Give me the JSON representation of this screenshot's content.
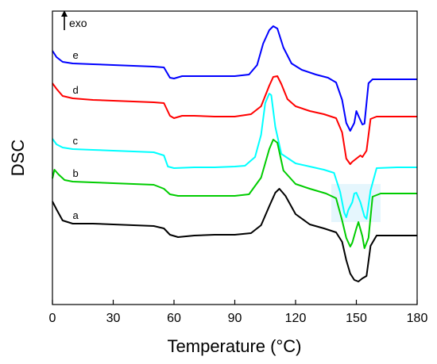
{
  "chart_data": {
    "type": "line",
    "xlabel": "Temperature (°C)",
    "ylabel": "DSC",
    "annotation": "exo",
    "xlim": [
      0,
      180
    ],
    "xticks": [
      0,
      30,
      60,
      90,
      120,
      150,
      180
    ],
    "yticks_shown": false,
    "grid": false,
    "series": [
      {
        "name": "e",
        "color": "#0000ff",
        "points": [
          [
            0,
            64
          ],
          [
            2,
            72
          ],
          [
            5,
            78
          ],
          [
            10,
            80
          ],
          [
            20,
            81
          ],
          [
            30,
            82
          ],
          [
            40,
            83
          ],
          [
            50,
            84
          ],
          [
            55,
            85
          ],
          [
            58,
            98
          ],
          [
            60,
            99
          ],
          [
            64,
            96
          ],
          [
            70,
            96
          ],
          [
            80,
            96
          ],
          [
            90,
            96
          ],
          [
            97,
            94
          ],
          [
            101,
            82
          ],
          [
            104,
            55
          ],
          [
            107,
            38
          ],
          [
            109,
            33
          ],
          [
            111,
            36
          ],
          [
            114,
            60
          ],
          [
            118,
            80
          ],
          [
            123,
            88
          ],
          [
            130,
            94
          ],
          [
            136,
            98
          ],
          [
            140,
            104
          ],
          [
            143,
            126
          ],
          [
            145,
            155
          ],
          [
            147,
            165
          ],
          [
            149,
            155
          ],
          [
            150,
            140
          ],
          [
            151,
            146
          ],
          [
            153,
            157
          ],
          [
            154,
            156
          ],
          [
            156,
            105
          ],
          [
            158,
            100
          ],
          [
            165,
            100
          ],
          [
            180,
            100
          ]
        ]
      },
      {
        "name": "d",
        "color": "#ff0000",
        "points": [
          [
            0,
            105
          ],
          [
            2,
            112
          ],
          [
            5,
            121
          ],
          [
            10,
            124
          ],
          [
            20,
            126
          ],
          [
            30,
            127
          ],
          [
            40,
            128
          ],
          [
            50,
            129
          ],
          [
            55,
            130
          ],
          [
            58,
            146
          ],
          [
            60,
            149
          ],
          [
            64,
            146
          ],
          [
            70,
            146
          ],
          [
            80,
            147
          ],
          [
            90,
            147
          ],
          [
            98,
            144
          ],
          [
            103,
            134
          ],
          [
            107,
            108
          ],
          [
            109,
            97
          ],
          [
            111,
            96
          ],
          [
            113,
            106
          ],
          [
            116,
            125
          ],
          [
            120,
            134
          ],
          [
            127,
            140
          ],
          [
            134,
            144
          ],
          [
            140,
            149
          ],
          [
            143,
            167
          ],
          [
            145,
            200
          ],
          [
            147,
            207
          ],
          [
            148,
            204
          ],
          [
            150,
            200
          ],
          [
            152,
            196
          ],
          [
            153,
            198
          ],
          [
            155,
            190
          ],
          [
            157,
            150
          ],
          [
            160,
            147
          ],
          [
            170,
            147
          ],
          [
            180,
            147
          ]
        ]
      },
      {
        "name": "c",
        "color": "#00ffff",
        "points": [
          [
            0,
            175
          ],
          [
            2,
            182
          ],
          [
            5,
            186
          ],
          [
            10,
            188
          ],
          [
            20,
            189
          ],
          [
            30,
            190
          ],
          [
            40,
            191
          ],
          [
            50,
            192
          ],
          [
            55,
            196
          ],
          [
            57,
            210
          ],
          [
            60,
            212
          ],
          [
            70,
            211
          ],
          [
            80,
            211
          ],
          [
            90,
            210
          ],
          [
            95,
            209
          ],
          [
            100,
            198
          ],
          [
            103,
            170
          ],
          [
            105,
            130
          ],
          [
            107,
            118
          ],
          [
            108,
            120
          ],
          [
            110,
            160
          ],
          [
            113,
            194
          ],
          [
            120,
            206
          ],
          [
            127,
            210
          ],
          [
            134,
            214
          ],
          [
            139,
            218
          ],
          [
            142,
            242
          ],
          [
            144,
            268
          ],
          [
            145,
            274
          ],
          [
            146,
            265
          ],
          [
            148,
            255
          ],
          [
            149,
            244
          ],
          [
            150,
            243
          ],
          [
            152,
            255
          ],
          [
            154,
            273
          ],
          [
            155,
            276
          ],
          [
            157,
            240
          ],
          [
            160,
            212
          ],
          [
            170,
            211
          ],
          [
            180,
            211
          ]
        ]
      },
      {
        "name": "b",
        "color": "#00cc00",
        "points": [
          [
            0,
            225
          ],
          [
            1,
            214
          ],
          [
            3,
            220
          ],
          [
            6,
            227
          ],
          [
            10,
            229
          ],
          [
            20,
            230
          ],
          [
            30,
            231
          ],
          [
            40,
            232
          ],
          [
            50,
            233
          ],
          [
            55,
            238
          ],
          [
            58,
            245
          ],
          [
            62,
            247
          ],
          [
            70,
            247
          ],
          [
            80,
            247
          ],
          [
            90,
            247
          ],
          [
            97,
            245
          ],
          [
            103,
            224
          ],
          [
            107,
            188
          ],
          [
            109,
            176
          ],
          [
            111,
            180
          ],
          [
            114,
            215
          ],
          [
            120,
            232
          ],
          [
            127,
            238
          ],
          [
            135,
            244
          ],
          [
            140,
            250
          ],
          [
            143,
            278
          ],
          [
            145,
            300
          ],
          [
            147,
            311
          ],
          [
            148,
            306
          ],
          [
            150,
            288
          ],
          [
            151,
            280
          ],
          [
            153,
            298
          ],
          [
            154,
            313
          ],
          [
            156,
            300
          ],
          [
            158,
            248
          ],
          [
            162,
            244
          ],
          [
            170,
            244
          ],
          [
            180,
            244
          ]
        ]
      },
      {
        "name": "a",
        "color": "#000000",
        "points": [
          [
            0,
            254
          ],
          [
            2,
            264
          ],
          [
            5,
            278
          ],
          [
            10,
            282
          ],
          [
            20,
            282
          ],
          [
            30,
            283
          ],
          [
            40,
            284
          ],
          [
            50,
            285
          ],
          [
            55,
            288
          ],
          [
            58,
            296
          ],
          [
            62,
            299
          ],
          [
            70,
            297
          ],
          [
            80,
            296
          ],
          [
            90,
            296
          ],
          [
            98,
            294
          ],
          [
            103,
            284
          ],
          [
            107,
            260
          ],
          [
            110,
            243
          ],
          [
            112,
            238
          ],
          [
            115,
            247
          ],
          [
            120,
            270
          ],
          [
            127,
            283
          ],
          [
            134,
            288
          ],
          [
            140,
            293
          ],
          [
            143,
            305
          ],
          [
            145,
            328
          ],
          [
            147,
            345
          ],
          [
            149,
            353
          ],
          [
            151,
            355
          ],
          [
            153,
            351
          ],
          [
            155,
            348
          ],
          [
            157,
            310
          ],
          [
            160,
            297
          ],
          [
            170,
            297
          ],
          [
            180,
            297
          ]
        ]
      }
    ]
  }
}
